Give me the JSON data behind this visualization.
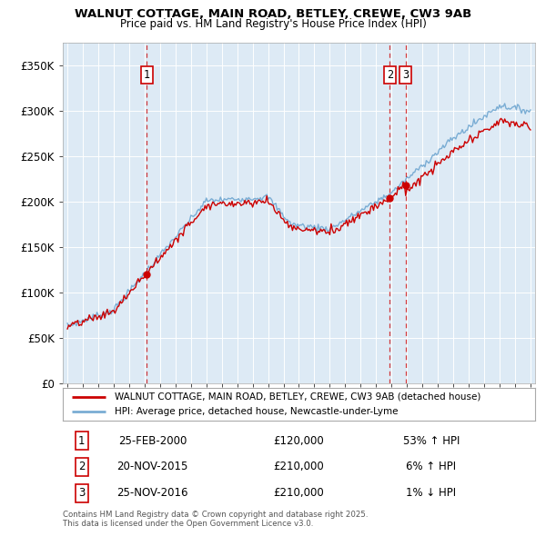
{
  "title1": "WALNUT COTTAGE, MAIN ROAD, BETLEY, CREWE, CW3 9AB",
  "title2": "Price paid vs. HM Land Registry's House Price Index (HPI)",
  "legend_line1": "WALNUT COTTAGE, MAIN ROAD, BETLEY, CREWE, CW3 9AB (detached house)",
  "legend_line2": "HPI: Average price, detached house, Newcastle-under-Lyme",
  "footer": "Contains HM Land Registry data © Crown copyright and database right 2025.\nThis data is licensed under the Open Government Licence v3.0.",
  "transactions": [
    {
      "num": 1,
      "date": "25-FEB-2000",
      "price": "£120,000",
      "hpi": "53% ↑ HPI",
      "year": 2000.14,
      "value": 120000
    },
    {
      "num": 2,
      "date": "20-NOV-2015",
      "price": "£210,000",
      "hpi": "6% ↑ HPI",
      "year": 2015.89,
      "value": 210000
    },
    {
      "num": 3,
      "date": "25-NOV-2016",
      "price": "£210,000",
      "hpi": "1% ↓ HPI",
      "year": 2016.9,
      "value": 210000
    }
  ],
  "plot_bg": "#ddeaf5",
  "red_color": "#cc0000",
  "blue_color": "#7aadd4",
  "ylim": [
    0,
    375000
  ],
  "xlim": [
    1994.7,
    2025.3
  ]
}
